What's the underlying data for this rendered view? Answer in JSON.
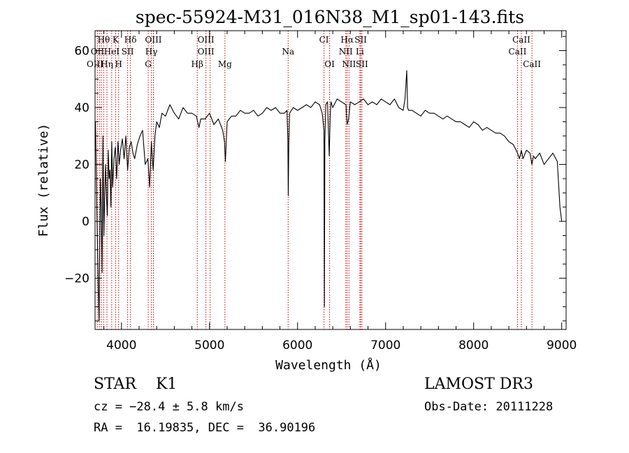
{
  "chart_data": {
    "type": "line",
    "title": "spec-55924-M31_016N38_M1_sp01-143.fits",
    "xlabel": "Wavelength (Å)",
    "ylabel": "Flux (relative)",
    "xlim": [
      3700,
      9050
    ],
    "ylim": [
      -38,
      67
    ],
    "xticks": [
      4000,
      5000,
      6000,
      7000,
      8000,
      9000
    ],
    "xtick_labels": [
      "4000",
      "5000",
      "6000",
      "7000",
      "8000",
      "9000"
    ],
    "yticks": [
      -20,
      0,
      20,
      40,
      60
    ],
    "ytick_labels": [
      "−20",
      "0",
      "20",
      "40",
      "60"
    ],
    "grid": false,
    "series": [
      {
        "name": "Flux",
        "x": [
          3705,
          3720,
          3735,
          3745,
          3760,
          3770,
          3780,
          3790,
          3800,
          3810,
          3820,
          3830,
          3840,
          3850,
          3860,
          3870,
          3880,
          3890,
          3900,
          3915,
          3930,
          3945,
          3960,
          3975,
          3990,
          4010,
          4030,
          4050,
          4070,
          4090,
          4110,
          4130,
          4150,
          4180,
          4210,
          4240,
          4270,
          4300,
          4320,
          4340,
          4360,
          4380,
          4400,
          4430,
          4460,
          4500,
          4550,
          4600,
          4650,
          4700,
          4750,
          4800,
          4850,
          4880,
          4900,
          4950,
          5000,
          5050,
          5100,
          5150,
          5170,
          5180,
          5200,
          5250,
          5300,
          5350,
          5400,
          5450,
          5500,
          5550,
          5600,
          5650,
          5700,
          5750,
          5800,
          5850,
          5880,
          5890,
          5895,
          5900,
          5910,
          5950,
          6000,
          6050,
          6100,
          6150,
          6200,
          6250,
          6280,
          6300,
          6305,
          6310,
          6320,
          6340,
          6360,
          6370,
          6380,
          6400,
          6450,
          6500,
          6550,
          6563,
          6580,
          6600,
          6650,
          6700,
          6750,
          6800,
          6850,
          6900,
          6950,
          7000,
          7050,
          7100,
          7150,
          7200,
          7220,
          7240,
          7250,
          7260,
          7300,
          7350,
          7400,
          7450,
          7500,
          7550,
          7600,
          7650,
          7700,
          7750,
          7800,
          7850,
          7900,
          7950,
          8000,
          8050,
          8100,
          8150,
          8200,
          8250,
          8300,
          8350,
          8400,
          8450,
          8498,
          8520,
          8542,
          8560,
          8600,
          8640,
          8662,
          8680,
          8700,
          8750,
          8800,
          8850,
          8900,
          8950,
          8980,
          9000
        ],
        "values": [
          35,
          5,
          -20,
          -35,
          15,
          5,
          -18,
          30,
          -5,
          10,
          20,
          8,
          2,
          25,
          15,
          18,
          5,
          28,
          12,
          22,
          26,
          15,
          28,
          20,
          25,
          29,
          22,
          30,
          18,
          26,
          28,
          24,
          22,
          27,
          30,
          32,
          20,
          22,
          12,
          28,
          18,
          30,
          35,
          33,
          38,
          37,
          41,
          38,
          36,
          40,
          38,
          38,
          37,
          33,
          36,
          36,
          38,
          34,
          36,
          32,
          28,
          21,
          35,
          37,
          37,
          39,
          38,
          38,
          39,
          37,
          38,
          40,
          39,
          40,
          38,
          38,
          39,
          28,
          9,
          27,
          38,
          40,
          39,
          40,
          41,
          40,
          42,
          41,
          38,
          32,
          -30,
          28,
          41,
          42,
          23,
          37,
          42,
          40,
          43,
          42,
          41,
          34,
          36,
          42,
          41,
          42,
          43,
          41,
          42,
          41,
          43,
          42,
          41,
          43,
          40,
          39,
          43,
          53,
          40,
          39,
          39,
          38,
          37,
          39,
          38,
          38,
          37,
          36,
          37,
          36,
          35,
          35,
          34,
          33,
          35,
          34,
          32,
          33,
          32,
          31,
          31,
          30,
          28,
          27,
          24,
          22,
          25,
          22,
          25,
          24,
          20,
          23,
          22,
          24,
          20,
          22,
          24,
          21,
          5,
          0
        ]
      }
    ],
    "lines": [
      {
        "label": "Hθ",
        "x": 3798,
        "row": 1
      },
      {
        "label": "K",
        "x": 3934,
        "row": 1
      },
      {
        "label": "Hδ",
        "x": 4102,
        "row": 1
      },
      {
        "label": "OIII",
        "x": 4363,
        "row": 1
      },
      {
        "label": "OIII",
        "x": 4959,
        "row": 1
      },
      {
        "label": "CI",
        "x": 6300,
        "row": 1
      },
      {
        "label": "Hα",
        "x": 6563,
        "row": 1
      },
      {
        "label": "SII",
        "x": 6717,
        "row": 1
      },
      {
        "label": "CaII",
        "x": 8542,
        "row": 1
      },
      {
        "label": "OII",
        "x": 3727,
        "row": 2
      },
      {
        "label": "HeI",
        "x": 3889,
        "row": 2
      },
      {
        "label": "SII",
        "x": 4070,
        "row": 2
      },
      {
        "label": "Hγ",
        "x": 4340,
        "row": 2
      },
      {
        "label": "OIII",
        "x": 4959,
        "row": 2
      },
      {
        "label": "Na",
        "x": 5893,
        "row": 2
      },
      {
        "label": "NII",
        "x": 6548,
        "row": 2
      },
      {
        "label": "Li",
        "x": 6708,
        "row": 2
      },
      {
        "label": "CaII",
        "x": 8498,
        "row": 2
      },
      {
        "label": "OIII",
        "x": 3700,
        "row": 3
      },
      {
        "label": "Hη",
        "x": 3835,
        "row": 3
      },
      {
        "label": "H",
        "x": 3968,
        "row": 3
      },
      {
        "label": "G",
        "x": 4304,
        "row": 3
      },
      {
        "label": "Hβ",
        "x": 4861,
        "row": 3
      },
      {
        "label": "Mg",
        "x": 5175,
        "row": 3
      },
      {
        "label": "OI",
        "x": 6364,
        "row": 3
      },
      {
        "label": "NII",
        "x": 6584,
        "row": 3
      },
      {
        "label": "SII",
        "x": 6731,
        "row": 3
      },
      {
        "label": "CaII",
        "x": 8662,
        "row": 3
      }
    ],
    "marker_lines_x": [
      3727,
      3750,
      3771,
      3798,
      3835,
      3889,
      3934,
      3968,
      4070,
      4102,
      4304,
      4340,
      4363,
      4861,
      4959,
      5007,
      5175,
      5893,
      6300,
      6364,
      6548,
      6563,
      6584,
      6708,
      6717,
      6731,
      8498,
      8542,
      8662
    ],
    "colors": {
      "spectrum": "#000000",
      "markers": "#cc0000",
      "axes": "#000000"
    }
  },
  "info": {
    "class_line": "STAR    K1",
    "cz_line": "cz = −28.4 ± 5.8 km/s",
    "coord_line": "RA =  16.19835, DEC =  36.90196",
    "survey": "LAMOST DR3",
    "obs_date": "Obs-Date: 20111228"
  }
}
